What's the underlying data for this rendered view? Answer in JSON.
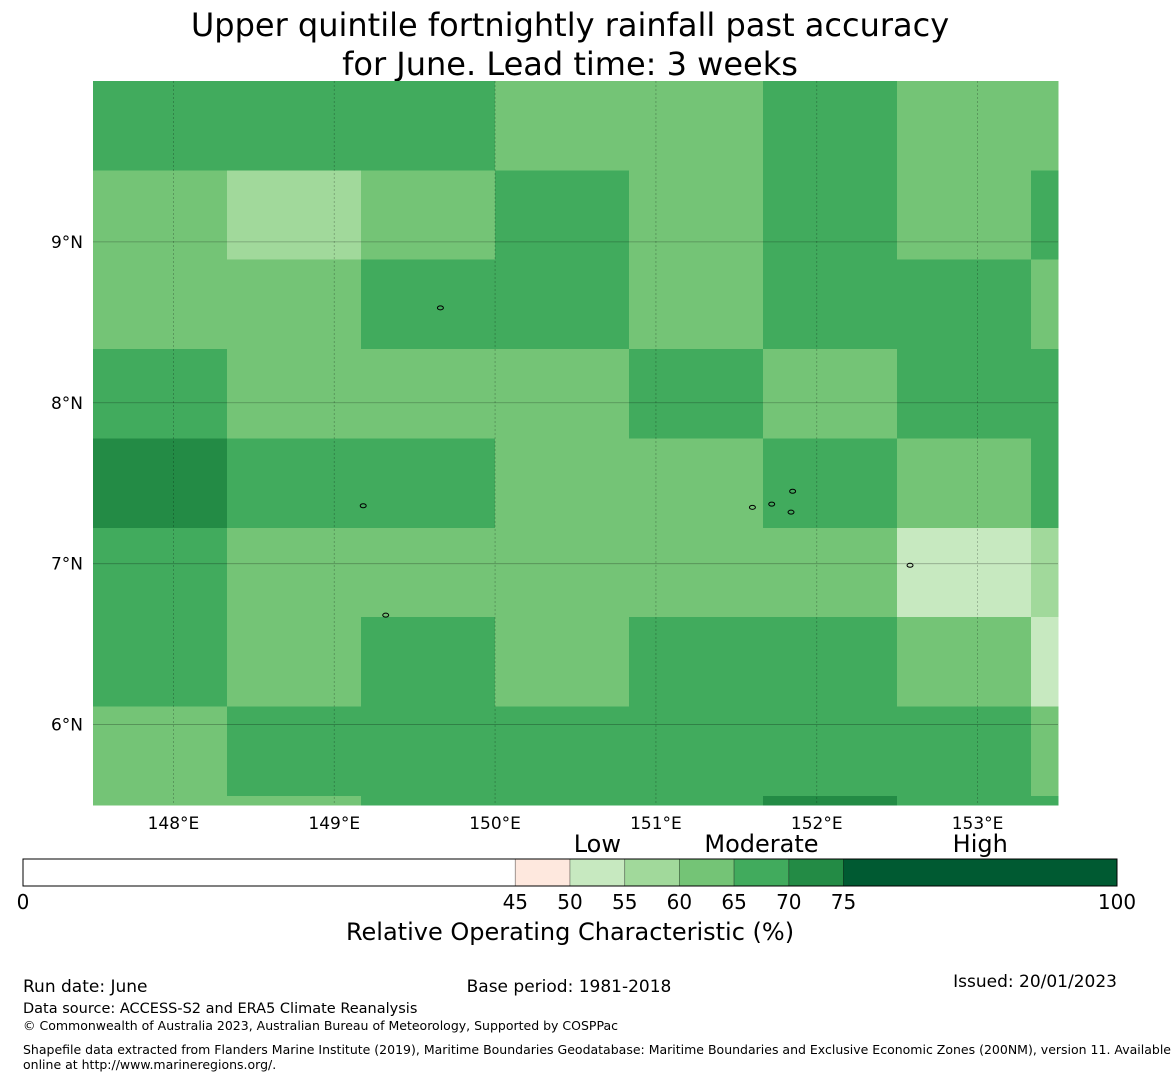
{
  "title": {
    "line1": "Upper quintile fortnightly rainfall past accuracy",
    "line2": "for June. Lead time: 3 weeks"
  },
  "map": {
    "lon_range": [
      147.5,
      153.5
    ],
    "lat_range": [
      5.5,
      10.0
    ],
    "lon_ticks": [
      {
        "value": 148,
        "label": "148°E"
      },
      {
        "value": 149,
        "label": "149°E"
      },
      {
        "value": 150,
        "label": "150°E"
      },
      {
        "value": 151,
        "label": "151°E"
      },
      {
        "value": 152,
        "label": "152°E"
      },
      {
        "value": 153,
        "label": "153°E"
      }
    ],
    "lat_ticks": [
      {
        "value": 9,
        "label": "9°N"
      },
      {
        "value": 8,
        "label": "8°N"
      },
      {
        "value": 7,
        "label": "7°N"
      },
      {
        "value": 6,
        "label": "6°N"
      }
    ],
    "grid_lines": true,
    "cell_lon_edges": [
      147.5,
      148.333,
      149.167,
      150.0,
      150.833,
      151.667,
      152.5,
      153.333,
      153.5
    ],
    "cell_lat_edges": [
      10.0,
      9.444,
      8.889,
      8.333,
      7.778,
      7.222,
      6.667,
      6.111,
      5.556,
      5.5
    ],
    "cell_classes": [
      [
        5,
        5,
        5,
        4,
        4,
        5,
        4,
        4
      ],
      [
        4,
        3,
        4,
        5,
        4,
        5,
        4,
        5
      ],
      [
        4,
        4,
        5,
        5,
        4,
        5,
        5,
        4
      ],
      [
        5,
        4,
        4,
        4,
        5,
        4,
        5,
        5
      ],
      [
        6,
        5,
        5,
        4,
        4,
        5,
        4,
        5
      ],
      [
        5,
        4,
        4,
        4,
        4,
        4,
        2,
        3
      ],
      [
        5,
        4,
        5,
        4,
        5,
        5,
        4,
        2
      ],
      [
        4,
        5,
        5,
        5,
        5,
        5,
        5,
        4
      ],
      [
        4,
        4,
        5,
        5,
        5,
        6,
        5,
        5
      ]
    ],
    "islands": [
      {
        "lon": 149.66,
        "lat": 8.59
      },
      {
        "lon": 149.18,
        "lat": 7.36
      },
      {
        "lon": 149.32,
        "lat": 6.68
      },
      {
        "lon": 151.6,
        "lat": 7.35
      },
      {
        "lon": 151.72,
        "lat": 7.37
      },
      {
        "lon": 151.85,
        "lat": 7.45
      },
      {
        "lon": 151.84,
        "lat": 7.32
      },
      {
        "lon": 152.58,
        "lat": 6.99
      }
    ]
  },
  "colorbar": {
    "boundaries": [
      0,
      45,
      50,
      55,
      60,
      65,
      70,
      75,
      100
    ],
    "tick_labels": [
      "0",
      "45",
      "50",
      "55",
      "60",
      "65",
      "70",
      "75",
      "100"
    ],
    "colors": [
      "#ffffff",
      "#fee8de",
      "#c7e9c0",
      "#a1d99b",
      "#74c476",
      "#41ab5d",
      "#238b45",
      "#005a32"
    ],
    "category_labels": [
      {
        "text": "Low",
        "value": 52.5
      },
      {
        "text": "Moderate",
        "value": 67.5
      },
      {
        "text": "High",
        "value": 87.5
      }
    ],
    "title": "Relative Operating Characteristic (%)"
  },
  "footer": {
    "run_date": "Run date: June",
    "base_period": "Base period: 1981-2018",
    "issued": "Issued: 20/01/2023",
    "data_source": "Data source: ACCESS-S2 and ERA5 Climate Reanalysis",
    "copyright": "© Commonwealth of Australia 2023, Australian Bureau of Meteorology, Supported by COSPPac",
    "shapefile_line1": "Shapefile data extracted from Flanders Marine Institute (2019), Maritime Boundaries Geodatabase: Maritime Boundaries and Exclusive Economic Zones (200NM), version 11. Available",
    "shapefile_line2": "online at http://www.marineregions.org/."
  }
}
